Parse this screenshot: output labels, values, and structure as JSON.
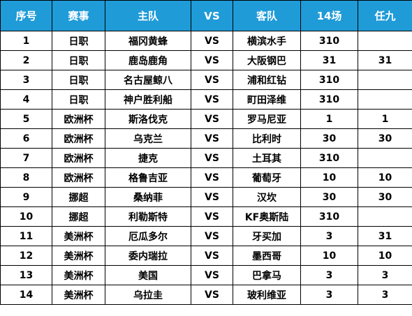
{
  "table": {
    "headers": [
      "序号",
      "赛事",
      "主队",
      "VS",
      "客队",
      "14场",
      "任九"
    ],
    "header_bg": "#1f9bd8",
    "rows": [
      [
        "1",
        "日职",
        "福冈黄蜂",
        "VS",
        "横滨水手",
        "310",
        ""
      ],
      [
        "2",
        "日职",
        "鹿岛鹿角",
        "VS",
        "大阪钢巴",
        "31",
        "31"
      ],
      [
        "3",
        "日职",
        "名古屋鲸八",
        "VS",
        "浦和红钻",
        "310",
        ""
      ],
      [
        "4",
        "日职",
        "神户胜利船",
        "VS",
        "町田泽维",
        "310",
        ""
      ],
      [
        "5",
        "欧洲杯",
        "斯洛伐克",
        "VS",
        "罗马尼亚",
        "1",
        "1"
      ],
      [
        "6",
        "欧洲杯",
        "乌克兰",
        "VS",
        "比利时",
        "30",
        "30"
      ],
      [
        "7",
        "欧洲杯",
        "捷克",
        "VS",
        "土耳其",
        "310",
        ""
      ],
      [
        "8",
        "欧洲杯",
        "格鲁吉亚",
        "VS",
        "葡萄牙",
        "10",
        "10"
      ],
      [
        "9",
        "挪超",
        "桑纳菲",
        "VS",
        "汉坎",
        "30",
        "30"
      ],
      [
        "10",
        "挪超",
        "利勒斯特",
        "VS",
        "KF奥斯陆",
        "310",
        ""
      ],
      [
        "11",
        "美洲杯",
        "厄瓜多尔",
        "VS",
        "牙买加",
        "3",
        "31"
      ],
      [
        "12",
        "美洲杯",
        "委内瑞拉",
        "VS",
        "墨西哥",
        "10",
        "10"
      ],
      [
        "13",
        "美洲杯",
        "美国",
        "VS",
        "巴拿马",
        "3",
        "3"
      ],
      [
        "14",
        "美洲杯",
        "乌拉圭",
        "VS",
        "玻利维亚",
        "3",
        "3"
      ]
    ]
  }
}
